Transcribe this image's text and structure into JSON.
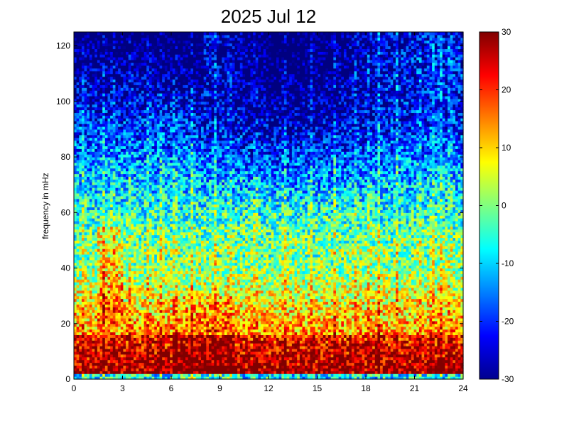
{
  "chart_data": {
    "type": "heatmap",
    "title": "2025 Jul 12",
    "xlabel": "",
    "ylabel": "frequency in mHz",
    "xlim": [
      0,
      24
    ],
    "ylim": [
      0,
      125
    ],
    "xticks": [
      "0",
      "3",
      "6",
      "9",
      "12",
      "15",
      "18",
      "21",
      "24"
    ],
    "yticks": [
      "0",
      "20",
      "40",
      "60",
      "80",
      "100",
      "120"
    ],
    "colorbar": {
      "range": [
        -30,
        30
      ],
      "ticks": [
        "30",
        "20",
        "10",
        "0",
        "-10",
        "-20",
        "-30"
      ],
      "colormap": "jet"
    },
    "grid": false
  }
}
